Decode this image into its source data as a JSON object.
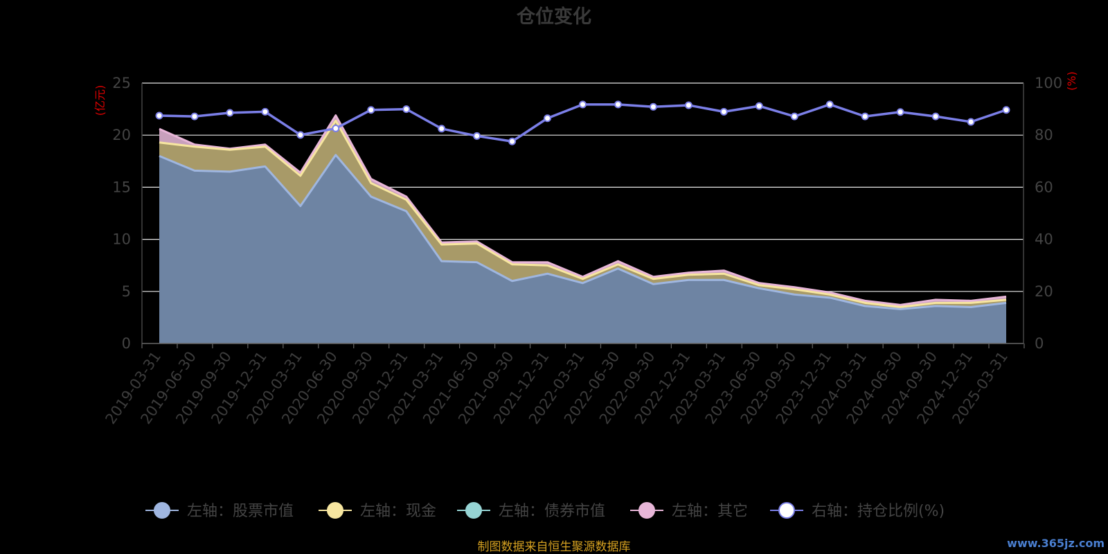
{
  "title": "仓位变化",
  "left_axis_unit": "(亿元)",
  "right_axis_unit": "(%)",
  "source_note": "制图数据来自恒生聚源数据库",
  "watermark": "www.365jz.com",
  "colors": {
    "background": "#000000",
    "stock": "#9fb6e0",
    "cash": "#f7e6a0",
    "bond": "#96d4d4",
    "other": "#e8b6d8",
    "ratio": "#7b7fe8",
    "grid": "#e8e8e8",
    "stock_fill": "#6e84a3",
    "cash_fill": "#a89a68"
  },
  "chart_data": {
    "type": "area",
    "categories": [
      "2019-03-31",
      "2019-06-30",
      "2019-09-30",
      "2019-12-31",
      "2020-03-31",
      "2020-06-30",
      "2020-09-30",
      "2020-12-31",
      "2021-03-31",
      "2021-06-30",
      "2021-09-30",
      "2021-12-31",
      "2022-03-31",
      "2022-06-30",
      "2022-09-30",
      "2022-12-31",
      "2023-03-31",
      "2023-06-30",
      "2023-09-30",
      "2023-12-31",
      "2024-03-31",
      "2024-06-30",
      "2024-09-30",
      "2024-12-31",
      "2025-03-31"
    ],
    "left_axis": {
      "min": 0,
      "max": 25,
      "ticks": [
        0,
        5,
        10,
        15,
        20,
        25
      ]
    },
    "right_axis": {
      "min": 0,
      "max": 100,
      "ticks": [
        0,
        20,
        40,
        60,
        80,
        100
      ]
    },
    "grid": true,
    "legend_position": "bottom",
    "series": [
      {
        "name": "左轴：股票市值",
        "axis": "left",
        "key": "stock",
        "values": [
          18.0,
          16.6,
          16.5,
          17.0,
          13.2,
          18.1,
          14.1,
          12.7,
          7.9,
          7.8,
          6.0,
          6.7,
          5.8,
          7.2,
          5.7,
          6.1,
          6.1,
          5.3,
          4.7,
          4.4,
          3.6,
          3.3,
          3.6,
          3.5,
          3.9
        ]
      },
      {
        "name": "左轴：现金",
        "axis": "left",
        "key": "cash",
        "values": [
          1.3,
          2.3,
          2.1,
          1.9,
          2.9,
          3.3,
          1.3,
          1.1,
          1.6,
          1.8,
          1.6,
          0.8,
          0.4,
          0.4,
          0.5,
          0.5,
          0.6,
          0.3,
          0.5,
          0.3,
          0.3,
          0.2,
          0.3,
          0.4,
          0.3
        ]
      },
      {
        "name": "左轴：债券市值",
        "axis": "left",
        "key": "bond",
        "values": [
          0,
          0,
          0,
          0,
          0,
          0,
          0,
          0,
          0,
          0,
          0,
          0,
          0,
          0,
          0,
          0,
          0,
          0,
          0,
          0,
          0,
          0,
          0,
          0,
          0
        ]
      },
      {
        "name": "左轴：其它",
        "axis": "left",
        "key": "other",
        "values": [
          1.3,
          0.2,
          0.1,
          0.2,
          0.3,
          0.5,
          0.4,
          0.3,
          0.2,
          0.2,
          0.2,
          0.3,
          0.2,
          0.3,
          0.2,
          0.2,
          0.3,
          0.2,
          0.2,
          0.2,
          0.2,
          0.2,
          0.3,
          0.2,
          0.3
        ]
      },
      {
        "name": "右轴：持仓比例(%)",
        "axis": "right",
        "key": "ratio",
        "values": [
          87.5,
          87.2,
          88.6,
          89.0,
          80.1,
          82.6,
          89.7,
          90.0,
          82.5,
          79.7,
          77.6,
          86.5,
          91.8,
          91.8,
          90.9,
          91.5,
          89.0,
          91.2,
          87.2,
          91.8,
          87.2,
          88.9,
          87.2,
          85.1,
          89.7
        ]
      }
    ]
  }
}
